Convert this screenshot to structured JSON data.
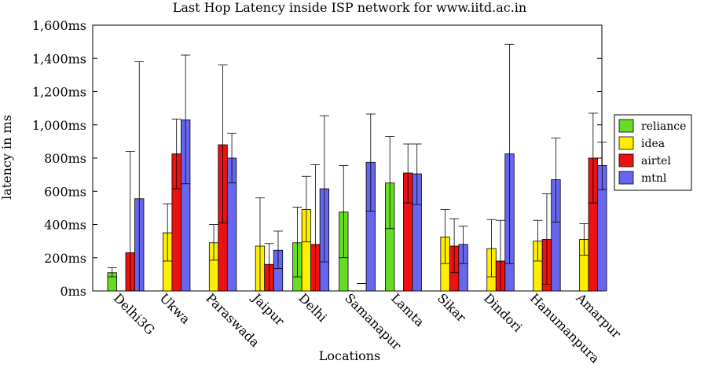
{
  "chart_data": {
    "type": "bar",
    "title": "Last Hop Latency inside ISP network for www.iitd.ac.in",
    "xlabel": "Locations",
    "ylabel": "latency in ms",
    "ylim": [
      0,
      1600
    ],
    "yticks": [
      0,
      200,
      400,
      600,
      800,
      1000,
      1200,
      1400,
      1600
    ],
    "ytick_labels": [
      "0ms",
      "200ms",
      "400ms",
      "600ms",
      "800ms",
      "1,000ms",
      "1,200ms",
      "1,400ms",
      "1,600ms"
    ],
    "grid": false,
    "legend_position": "right",
    "categories": [
      "Delhi3G",
      "Ukwa",
      "Paraswada",
      "Jaipur",
      "Delhi",
      "Samanapur",
      "Lamta",
      "Sikar",
      "Dindori",
      "Hanumanpura",
      "Amarpur"
    ],
    "series": [
      {
        "name": "reliance",
        "color": "#66dd22",
        "values": [
          110,
          null,
          null,
          null,
          290,
          475,
          650,
          null,
          null,
          null,
          null
        ],
        "err_low": [
          85,
          null,
          null,
          null,
          85,
          200,
          375,
          null,
          null,
          null,
          null
        ],
        "err_high": [
          140,
          null,
          null,
          null,
          505,
          755,
          930,
          null,
          null,
          null,
          null
        ]
      },
      {
        "name": "idea",
        "color": "#ffee00",
        "values": [
          null,
          350,
          290,
          270,
          490,
          null,
          null,
          325,
          255,
          300,
          310
        ],
        "err_low": [
          null,
          180,
          185,
          0,
          295,
          null,
          null,
          165,
          85,
          180,
          215
        ],
        "err_high": [
          null,
          525,
          400,
          560,
          690,
          null,
          null,
          490,
          430,
          425,
          405
        ]
      },
      {
        "name": "airtel",
        "color": "#ee1111",
        "values": [
          230,
          825,
          880,
          160,
          280,
          0,
          710,
          270,
          180,
          310,
          800
        ],
        "err_low": [
          0,
          615,
          410,
          0,
          0,
          45,
          530,
          110,
          0,
          40,
          530
        ],
        "err_high": [
          840,
          1035,
          1360,
          285,
          760,
          45,
          885,
          435,
          425,
          585,
          1070
        ]
      },
      {
        "name": "mtnl",
        "color": "#6666ee",
        "values": [
          555,
          1030,
          800,
          245,
          615,
          775,
          705,
          280,
          825,
          670,
          755
        ],
        "err_low": [
          0,
          645,
          650,
          135,
          175,
          480,
          520,
          165,
          165,
          415,
          610
        ],
        "err_high": [
          1380,
          1420,
          950,
          360,
          1055,
          1065,
          885,
          390,
          1485,
          920,
          895
        ]
      }
    ]
  }
}
